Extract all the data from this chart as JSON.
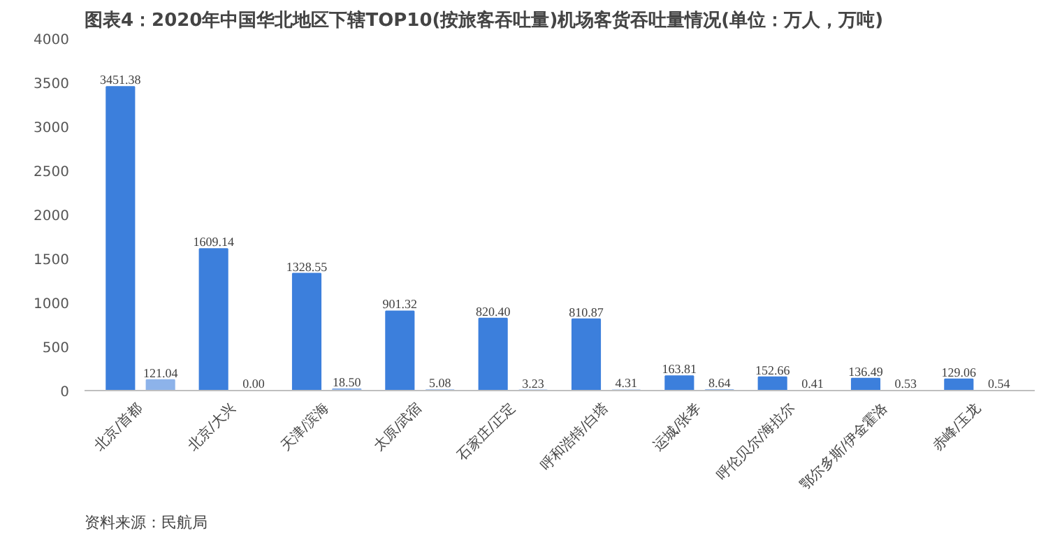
{
  "chart_data": {
    "type": "bar",
    "title": "图表4：2020年中国华北地区下辖TOP10(按旅客吞吐量)机场客货吞吐量情况(单位：万人，万吨)",
    "categories": [
      "北京/首都",
      "北京/大兴",
      "天津/滨海",
      "太原/武宿",
      "石家庄/正定",
      "呼和浩特/白塔",
      "运城/张孝",
      "呼伦贝尔/海拉尔",
      "鄂尔多斯/伊金霍洛",
      "赤峰/玉龙"
    ],
    "series": [
      {
        "color": "#3c7fdc",
        "values": [
          3451.38,
          1609.14,
          1328.55,
          901.32,
          820.4,
          810.87,
          163.81,
          152.66,
          136.49,
          129.06
        ],
        "value_labels": [
          "3451.38",
          "1609.14",
          "1328.55",
          "901.32",
          "820.40",
          "810.87",
          "163.81",
          "152.66",
          "136.49",
          "129.06"
        ]
      },
      {
        "color": "#8db3ea",
        "values": [
          121.04,
          0.0,
          18.5,
          5.08,
          3.23,
          4.31,
          8.64,
          0.41,
          0.53,
          0.54
        ],
        "value_labels": [
          "121.04",
          "0.00",
          "18.50",
          "5.08",
          "3.23",
          "4.31",
          "8.64",
          "0.41",
          "0.53",
          "0.54"
        ]
      }
    ],
    "ylim": [
      0,
      4000
    ],
    "yticks": [
      0,
      500,
      1000,
      1500,
      2000,
      2500,
      3000,
      3500,
      4000
    ],
    "grid": false,
    "annotations": [
      "资料来源：民航局"
    ]
  }
}
